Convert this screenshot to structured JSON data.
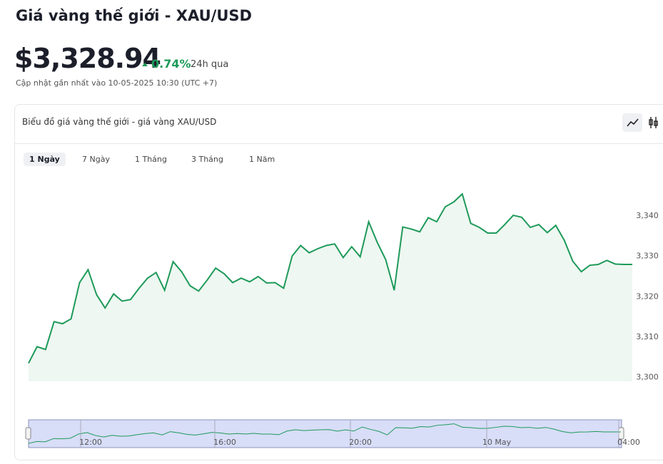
{
  "header": {
    "title": "Giá vàng thế giới - XAU/USD",
    "price": "$3,328.94",
    "change": "0.74%",
    "period": "24h qua",
    "updated": "Cập nhật gần nhất vào 10-05-2025 10:30 (UTC +7)"
  },
  "card": {
    "title": "Biểu đồ giá vàng thế giới - giá vàng XAU/USD",
    "tabs": [
      "1 Ngày",
      "7 Ngày",
      "1 Tháng",
      "3 Tháng",
      "1 Năm"
    ]
  },
  "chart_data": {
    "type": "area",
    "color": "#1e9a5a",
    "values": [
      3303.5,
      3307.6,
      3306.9,
      3313.8,
      3313.3,
      3314.5,
      3323.5,
      3326.7,
      3320.5,
      3317.2,
      3320.7,
      3318.9,
      3319.3,
      3322.1,
      3324.6,
      3326.0,
      3321.6,
      3328.7,
      3326.2,
      3322.7,
      3321.4,
      3324.1,
      3327.1,
      3325.7,
      3323.5,
      3324.6,
      3323.7,
      3325.0,
      3323.4,
      3323.5,
      3322.1,
      3330.1,
      3332.7,
      3330.9,
      3331.9,
      3332.7,
      3333.1,
      3329.7,
      3332.4,
      3329.9,
      3338.6,
      3333.5,
      3329.2,
      3321.6,
      3337.3,
      3336.8,
      3336.1,
      3339.6,
      3338.6,
      3342.3,
      3343.5,
      3345.5,
      3338.2,
      3337.2,
      3335.8,
      3335.8,
      3337.9,
      3340.2,
      3339.7,
      3337.2,
      3337.9,
      3335.9,
      3337.7,
      3334.0,
      3328.8,
      3326.2,
      3327.8,
      3328.0,
      3329.0,
      3328.1,
      3328.0,
      3328.0
    ],
    "ylim": [
      3299,
      3351
    ],
    "yticks": [
      {
        "value": 3300,
        "label": "3,300"
      },
      {
        "value": 3310,
        "label": "3,310"
      },
      {
        "value": 3320,
        "label": "3,320"
      },
      {
        "value": 3330,
        "label": "3,330"
      },
      {
        "value": 3340,
        "label": "3,340"
      }
    ],
    "navigator_labels": [
      "12:00",
      "16:00",
      "20:00",
      "10 May",
      "04:00"
    ]
  }
}
